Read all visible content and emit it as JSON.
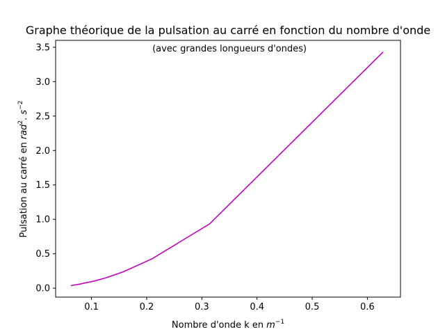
{
  "chart_data": {
    "type": "line",
    "title": "Graphe théorique de la pulsation au carré en fonction du nombre d'onde",
    "annotation": "(avec grandes longueurs d'ondes)",
    "xlabel": {
      "text": "Nombre d'onde k en ",
      "math_base": "m",
      "math_sup": "−1"
    },
    "ylabel": {
      "text": "Pulsation au carré en ",
      "math": "rad",
      "sup1": "2",
      "mid": ". ",
      "math2": "s",
      "sup2": "−2"
    },
    "xlim": [
      0.035,
      0.66
    ],
    "ylim": [
      -0.13,
      3.6
    ],
    "xticks": [
      0.1,
      0.2,
      0.3,
      0.4,
      0.5,
      0.6
    ],
    "xtick_labels": [
      "0.1",
      "0.2",
      "0.3",
      "0.4",
      "0.5",
      "0.6"
    ],
    "yticks": [
      0.0,
      0.5,
      1.0,
      1.5,
      2.0,
      2.5,
      3.0,
      3.5
    ],
    "ytick_labels": [
      "0.0",
      "0.5",
      "1.0",
      "1.5",
      "2.0",
      "2.5",
      "3.0",
      "3.5"
    ],
    "grid": false,
    "line_color": "#bf00bf",
    "series": [
      {
        "x": [
          0.0628,
          0.0785,
          0.1047,
          0.1257,
          0.1571,
          0.2094,
          0.3142,
          0.6283
        ],
        "y": [
          0.037,
          0.059,
          0.103,
          0.149,
          0.236,
          0.425,
          0.935,
          3.43
        ]
      }
    ]
  }
}
